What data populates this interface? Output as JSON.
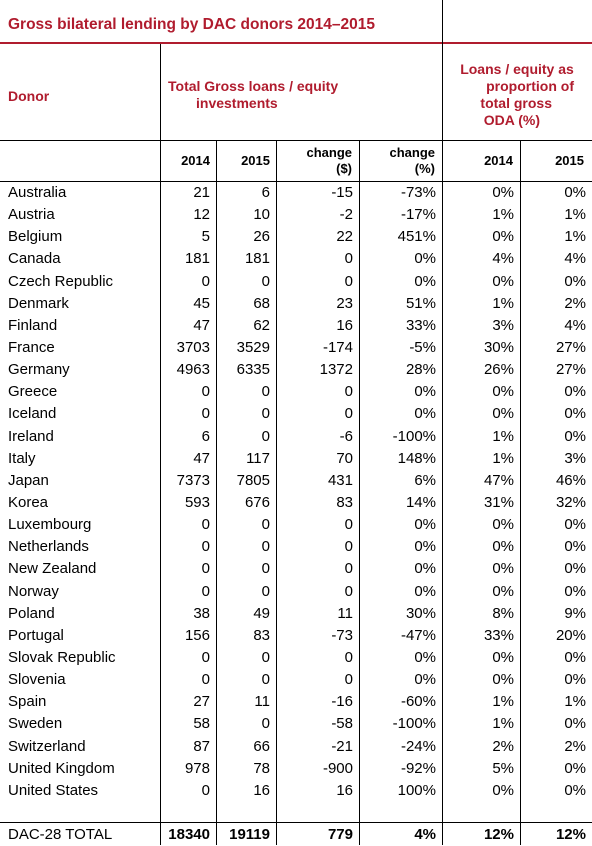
{
  "title": "Gross bilateral lending by DAC donors 2014–2015",
  "header": {
    "donor": "Donor",
    "group_total": "Total Gross loans / equity investments",
    "group_total_line1": "Total Gross loans / equity",
    "group_total_line2": "investments",
    "group_share_line1": "Loans / equity as",
    "group_share_line2": "proportion of",
    "group_share_line3": "total gross",
    "group_share_line4": "ODA (%)",
    "col_2014": "2014",
    "col_2015": "2015",
    "col_change_line1": "change",
    "col_change_line2": "($)",
    "col_changepct_line1": "change",
    "col_changepct_line2": "(%)",
    "col_share_2014": "2014",
    "col_share_2015": "2015"
  },
  "rows": [
    {
      "donor": "Australia",
      "y2014": "21",
      "y2015": "6",
      "change": "-15",
      "change_pct": "-73%",
      "share2014": "0%",
      "share2015": "0%"
    },
    {
      "donor": "Austria",
      "y2014": "12",
      "y2015": "10",
      "change": "-2",
      "change_pct": "-17%",
      "share2014": "1%",
      "share2015": "1%"
    },
    {
      "donor": "Belgium",
      "y2014": "5",
      "y2015": "26",
      "change": "22",
      "change_pct": "451%",
      "share2014": "0%",
      "share2015": "1%"
    },
    {
      "donor": "Canada",
      "y2014": "181",
      "y2015": "181",
      "change": "0",
      "change_pct": "0%",
      "share2014": "4%",
      "share2015": "4%"
    },
    {
      "donor": "Czech Republic",
      "y2014": "0",
      "y2015": "0",
      "change": "0",
      "change_pct": "0%",
      "share2014": "0%",
      "share2015": "0%"
    },
    {
      "donor": "Denmark",
      "y2014": "45",
      "y2015": "68",
      "change": "23",
      "change_pct": "51%",
      "share2014": "1%",
      "share2015": "2%"
    },
    {
      "donor": "Finland",
      "y2014": "47",
      "y2015": "62",
      "change": "16",
      "change_pct": "33%",
      "share2014": "3%",
      "share2015": "4%"
    },
    {
      "donor": "France",
      "y2014": "3703",
      "y2015": "3529",
      "change": "-174",
      "change_pct": "-5%",
      "share2014": "30%",
      "share2015": "27%"
    },
    {
      "donor": "Germany",
      "y2014": "4963",
      "y2015": "6335",
      "change": "1372",
      "change_pct": "28%",
      "share2014": "26%",
      "share2015": "27%"
    },
    {
      "donor": "Greece",
      "y2014": "0",
      "y2015": "0",
      "change": "0",
      "change_pct": "0%",
      "share2014": "0%",
      "share2015": "0%"
    },
    {
      "donor": "Iceland",
      "y2014": "0",
      "y2015": "0",
      "change": "0",
      "change_pct": "0%",
      "share2014": "0%",
      "share2015": "0%"
    },
    {
      "donor": "Ireland",
      "y2014": "6",
      "y2015": "0",
      "change": "-6",
      "change_pct": "-100%",
      "share2014": "1%",
      "share2015": "0%"
    },
    {
      "donor": "Italy",
      "y2014": "47",
      "y2015": "117",
      "change": "70",
      "change_pct": "148%",
      "share2014": "1%",
      "share2015": "3%"
    },
    {
      "donor": "Japan",
      "y2014": "7373",
      "y2015": "7805",
      "change": "431",
      "change_pct": "6%",
      "share2014": "47%",
      "share2015": "46%"
    },
    {
      "donor": "Korea",
      "y2014": "593",
      "y2015": "676",
      "change": "83",
      "change_pct": "14%",
      "share2014": "31%",
      "share2015": "32%"
    },
    {
      "donor": "Luxembourg",
      "y2014": "0",
      "y2015": "0",
      "change": "0",
      "change_pct": "0%",
      "share2014": "0%",
      "share2015": "0%"
    },
    {
      "donor": "Netherlands",
      "y2014": "0",
      "y2015": "0",
      "change": "0",
      "change_pct": "0%",
      "share2014": "0%",
      "share2015": "0%"
    },
    {
      "donor": "New Zealand",
      "y2014": "0",
      "y2015": "0",
      "change": "0",
      "change_pct": "0%",
      "share2014": "0%",
      "share2015": "0%"
    },
    {
      "donor": "Norway",
      "y2014": "0",
      "y2015": "0",
      "change": "0",
      "change_pct": "0%",
      "share2014": "0%",
      "share2015": "0%"
    },
    {
      "donor": "Poland",
      "y2014": "38",
      "y2015": "49",
      "change": "11",
      "change_pct": "30%",
      "share2014": "8%",
      "share2015": "9%"
    },
    {
      "donor": "Portugal",
      "y2014": "156",
      "y2015": "83",
      "change": "-73",
      "change_pct": "-47%",
      "share2014": "33%",
      "share2015": "20%"
    },
    {
      "donor": "Slovak Republic",
      "y2014": "0",
      "y2015": "0",
      "change": "0",
      "change_pct": "0%",
      "share2014": "0%",
      "share2015": "0%"
    },
    {
      "donor": "Slovenia",
      "y2014": "0",
      "y2015": "0",
      "change": "0",
      "change_pct": "0%",
      "share2014": "0%",
      "share2015": "0%"
    },
    {
      "donor": "Spain",
      "y2014": "27",
      "y2015": "11",
      "change": "-16",
      "change_pct": "-60%",
      "share2014": "1%",
      "share2015": "1%"
    },
    {
      "donor": "Sweden",
      "y2014": "58",
      "y2015": "0",
      "change": "-58",
      "change_pct": "-100%",
      "share2014": "1%",
      "share2015": "0%"
    },
    {
      "donor": "Switzerland",
      "y2014": "87",
      "y2015": "66",
      "change": "-21",
      "change_pct": "-24%",
      "share2014": "2%",
      "share2015": "2%"
    },
    {
      "donor": "United Kingdom",
      "y2014": "978",
      "y2015": "78",
      "change": "-900",
      "change_pct": "-92%",
      "share2014": "5%",
      "share2015": "0%"
    },
    {
      "donor": "United States",
      "y2014": "0",
      "y2015": "16",
      "change": "16",
      "change_pct": "100%",
      "share2014": "0%",
      "share2015": "0%"
    }
  ],
  "total": {
    "donor": "DAC-28 TOTAL",
    "y2014": "18340",
    "y2015": "19119",
    "change": "779",
    "change_pct": "4%",
    "share2014": "12%",
    "share2015": "12%"
  },
  "colors": {
    "accent": "#b01c2e",
    "rule": "#000000"
  }
}
